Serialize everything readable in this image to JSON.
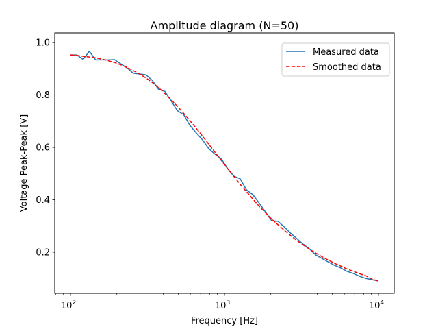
{
  "chart_data": {
    "type": "line",
    "title": "Amplitude diagram (N=50)",
    "xlabel": "Frequency [Hz]",
    "ylabel": "Voltage Peak-Peak [V]",
    "xscale": "log",
    "xlim": [
      79,
      12650
    ],
    "ylim": [
      0.043,
      1.037
    ],
    "grid": false,
    "legend_position": "top-right",
    "x_major_ticks": [
      {
        "value": 100,
        "base": "10",
        "exp": "2"
      },
      {
        "value": 1000,
        "base": "10",
        "exp": "3"
      },
      {
        "value": 10000,
        "base": "10",
        "exp": "4"
      }
    ],
    "y_ticks": [
      {
        "value": 0.2,
        "label": "0.2"
      },
      {
        "value": 0.4,
        "label": "0.4"
      },
      {
        "value": 0.6,
        "label": "0.6"
      },
      {
        "value": 0.8,
        "label": "0.8"
      },
      {
        "value": 1.0,
        "label": "1.0"
      }
    ],
    "x_log_start": 2,
    "x_log_end": 4,
    "n_points": 50,
    "series": [
      {
        "name": "Measured data",
        "color": "#1f77b4",
        "style": "solid",
        "values": [
          0.953,
          0.953,
          0.936,
          0.967,
          0.934,
          0.934,
          0.934,
          0.935,
          0.919,
          0.903,
          0.883,
          0.88,
          0.877,
          0.856,
          0.822,
          0.814,
          0.778,
          0.74,
          0.725,
          0.684,
          0.655,
          0.629,
          0.595,
          0.574,
          0.556,
          0.519,
          0.49,
          0.48,
          0.438,
          0.42,
          0.388,
          0.354,
          0.32,
          0.318,
          0.297,
          0.273,
          0.252,
          0.231,
          0.213,
          0.19,
          0.176,
          0.163,
          0.15,
          0.14,
          0.127,
          0.119,
          0.108,
          0.1,
          0.095,
          0.09
        ]
      },
      {
        "name": "Smoothed data",
        "color": "#ff0000",
        "style": "dashed",
        "values": [
          0.953,
          0.951,
          0.948,
          0.945,
          0.942,
          0.937,
          0.931,
          0.924,
          0.915,
          0.905,
          0.893,
          0.88,
          0.865,
          0.848,
          0.828,
          0.806,
          0.782,
          0.757,
          0.73,
          0.702,
          0.673,
          0.643,
          0.612,
          0.581,
          0.55,
          0.519,
          0.489,
          0.459,
          0.431,
          0.403,
          0.376,
          0.351,
          0.327,
          0.305,
          0.284,
          0.264,
          0.245,
          0.228,
          0.212,
          0.197,
          0.183,
          0.17,
          0.158,
          0.147,
          0.136,
          0.127,
          0.118,
          0.11,
          0.097,
          0.09
        ]
      }
    ]
  }
}
